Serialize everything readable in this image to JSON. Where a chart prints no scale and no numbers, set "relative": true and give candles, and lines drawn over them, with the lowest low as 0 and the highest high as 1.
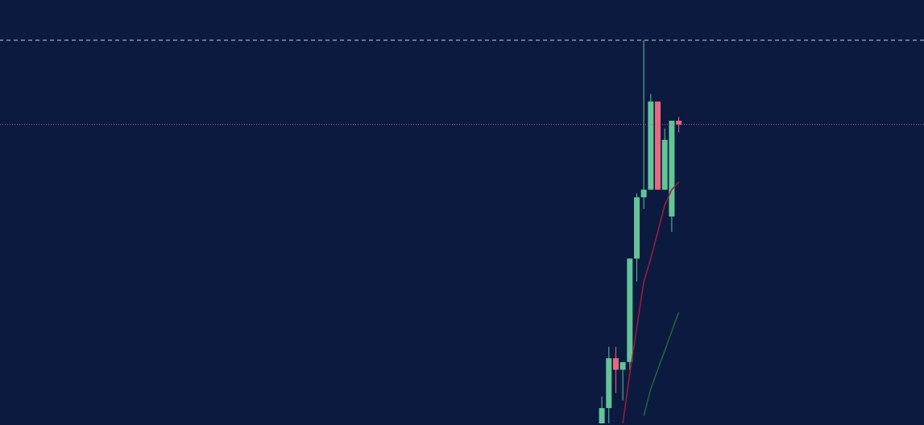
{
  "chart_data": {
    "type": "candlestick",
    "relative": true,
    "tick_labels": false,
    "categories": [
      null,
      null,
      null,
      null,
      null,
      null,
      null,
      null,
      null,
      null,
      null,
      null,
      null,
      null,
      null,
      null,
      null,
      null,
      null,
      null,
      null,
      null,
      null,
      null,
      null,
      null,
      null,
      null,
      null,
      null,
      null,
      null,
      null,
      null,
      null,
      null,
      null,
      null,
      null,
      null,
      null,
      null,
      null,
      null,
      null,
      null,
      null,
      null,
      null,
      null,
      null,
      null,
      null,
      null,
      null,
      null,
      null,
      null,
      null,
      null,
      null,
      null,
      null,
      null,
      null,
      null,
      null,
      null,
      null,
      null,
      null,
      null,
      null,
      null,
      null,
      null,
      null,
      null,
      null,
      null,
      null,
      null,
      null,
      null,
      null,
      null,
      null,
      null,
      null,
      null,
      null,
      null,
      null,
      null,
      null,
      null,
      null,
      null,
      null,
      null,
      null,
      null,
      null,
      null,
      null,
      null,
      null,
      null,
      null,
      null,
      null,
      null,
      null,
      null,
      null,
      null,
      null,
      null,
      null,
      null,
      null,
      null,
      null,
      null,
      null,
      null,
      null,
      null,
      null,
      null,
      null
    ],
    "ohlc": [
      null,
      null,
      null,
      null,
      null,
      null,
      null,
      null,
      null,
      null,
      null,
      null,
      null,
      null,
      null,
      null,
      null,
      null,
      null,
      null,
      null,
      null,
      null,
      null,
      null,
      null,
      null,
      null,
      null,
      null,
      null,
      null,
      null,
      null,
      null,
      null,
      null,
      null,
      null,
      null,
      null,
      null,
      null,
      null,
      null,
      null,
      null,
      null,
      null,
      null,
      null,
      null,
      null,
      null,
      null,
      null,
      null,
      null,
      null,
      null,
      null,
      null,
      null,
      null,
      null,
      null,
      null,
      null,
      null,
      null,
      null,
      null,
      null,
      null,
      null,
      null,
      null,
      null,
      null,
      null,
      null,
      null,
      null,
      null,
      null,
      [
        0,
        0.07,
        0,
        0.04
      ],
      [
        0.04,
        0.2,
        0,
        0.17
      ],
      [
        0.17,
        0.2,
        0.08,
        0.14
      ],
      [
        0.14,
        0.16,
        0.06,
        0.16
      ],
      [
        0.16,
        0.43,
        0.14,
        0.43
      ],
      [
        0.43,
        0.6,
        0.37,
        0.59
      ],
      [
        0.59,
        1.0,
        0.56,
        0.61
      ],
      [
        0.61,
        0.86,
        0.61,
        0.84
      ],
      [
        0.84,
        0.84,
        0.61,
        0.61
      ],
      [
        0.61,
        0.77,
        0.61,
        0.74
      ],
      [
        0.54,
        0.79,
        0.5,
        0.79
      ],
      [
        0.79,
        0.8,
        0.76,
        0.78
      ],
      null,
      null,
      null,
      null,
      null,
      null,
      null,
      null,
      null,
      null,
      null,
      null,
      null,
      null,
      null,
      null,
      null,
      null,
      null,
      null,
      null,
      null,
      null,
      null,
      null,
      null,
      null,
      null,
      null,
      null,
      null,
      null,
      null,
      null
    ],
    "colors": [
      null,
      null,
      null,
      null,
      null,
      null,
      null,
      null,
      null,
      null,
      null,
      null,
      null,
      null,
      null,
      null,
      null,
      null,
      null,
      null,
      null,
      null,
      null,
      null,
      null,
      null,
      null,
      null,
      null,
      null,
      null,
      null,
      null,
      null,
      null,
      null,
      null,
      null,
      null,
      null,
      null,
      null,
      null,
      null,
      null,
      null,
      null,
      null,
      null,
      null,
      null,
      null,
      null,
      null,
      null,
      null,
      null,
      null,
      null,
      null,
      null,
      null,
      null,
      null,
      null,
      null,
      null,
      null,
      null,
      null,
      null,
      null,
      null,
      null,
      null,
      null,
      null,
      null,
      null,
      null,
      null,
      null,
      null,
      null,
      null,
      "#63c497",
      "#63c497",
      "#e8687f",
      "#63c497",
      "#63c497",
      "#63c497",
      "#63c497",
      "#63c497",
      "#e8687f",
      "#63c497",
      "#63c497",
      "#e8687f",
      null,
      null,
      null,
      null,
      null,
      null,
      null,
      null,
      null,
      null,
      null,
      null,
      null,
      null,
      null,
      null,
      null,
      null,
      null,
      null,
      null,
      null,
      null,
      null,
      null,
      null,
      null,
      null,
      null,
      null,
      null,
      null,
      null,
      null
    ],
    "series": [
      {
        "type": "line",
        "color": "#9e1f3a",
        "values": [
          null,
          null,
          null,
          null,
          null,
          null,
          null,
          null,
          null,
          null,
          null,
          null,
          null,
          null,
          null,
          null,
          null,
          null,
          null,
          null,
          null,
          null,
          null,
          null,
          null,
          null,
          null,
          null,
          null,
          null,
          null,
          null,
          null,
          null,
          null,
          null,
          null,
          null,
          null,
          null,
          null,
          null,
          null,
          null,
          null,
          null,
          null,
          null,
          null,
          null,
          null,
          null,
          null,
          null,
          null,
          null,
          null,
          null,
          null,
          null,
          null,
          null,
          null,
          null,
          null,
          null,
          null,
          null,
          null,
          null,
          null,
          null,
          null,
          null,
          null,
          null,
          null,
          null,
          null,
          null,
          null,
          null,
          null,
          null,
          null,
          null,
          null,
          null,
          0,
          0.13,
          0.25,
          0.37,
          0.43,
          0.5,
          0.57,
          0.61,
          0.63,
          null,
          null,
          null,
          null,
          null,
          null,
          null,
          null,
          null,
          null,
          null,
          null,
          null,
          null,
          null,
          null,
          null,
          null,
          null,
          null,
          null,
          null,
          null,
          null,
          null,
          null,
          null,
          null,
          null,
          null,
          null,
          null,
          null,
          null
        ]
      },
      {
        "type": "line",
        "color": "#1f6b35",
        "values": [
          null,
          null,
          null,
          null,
          null,
          null,
          null,
          null,
          null,
          null,
          null,
          null,
          null,
          null,
          null,
          null,
          null,
          null,
          null,
          null,
          null,
          null,
          null,
          null,
          null,
          null,
          null,
          null,
          null,
          null,
          null,
          null,
          null,
          null,
          null,
          null,
          null,
          null,
          null,
          null,
          null,
          null,
          null,
          null,
          null,
          null,
          null,
          null,
          null,
          null,
          null,
          null,
          null,
          null,
          null,
          null,
          null,
          null,
          null,
          null,
          null,
          null,
          null,
          null,
          null,
          null,
          null,
          null,
          null,
          null,
          null,
          null,
          null,
          null,
          null,
          null,
          null,
          null,
          null,
          null,
          null,
          null,
          null,
          null,
          null,
          null,
          null,
          null,
          null,
          null,
          null,
          0.02,
          0.09,
          0.14,
          0.19,
          0.24,
          0.29,
          null,
          null,
          null,
          null,
          null,
          null,
          null,
          null,
          null,
          null,
          null,
          null,
          null,
          null,
          null,
          null,
          null,
          null,
          null,
          null,
          null,
          null,
          null,
          null,
          null,
          null,
          null,
          null,
          null,
          null,
          null,
          null,
          null,
          null
        ]
      }
    ],
    "ref_lines": [
      {
        "axis": "y",
        "value": 0.78,
        "color": "#c0568a",
        "line_style": "dotted"
      },
      {
        "axis": "y",
        "value": 1.0,
        "color": "#c8ccd8",
        "line_style": "dashed"
      }
    ]
  }
}
